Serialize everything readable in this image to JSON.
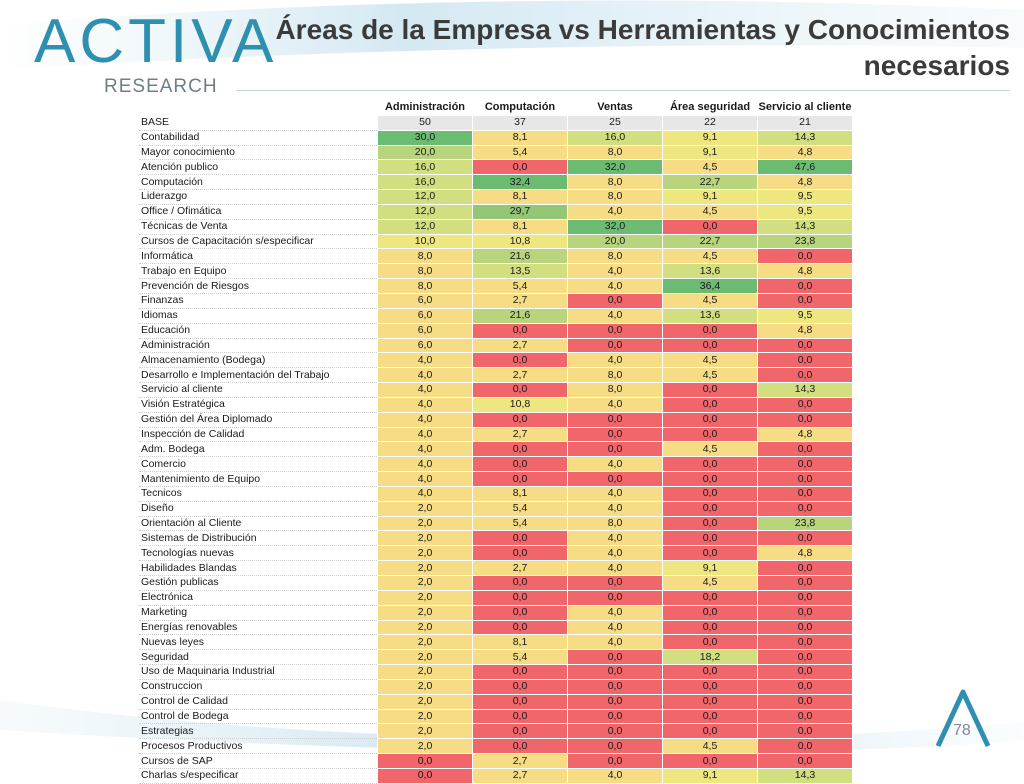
{
  "logo": {
    "mark": "ACTIVA",
    "sub": "RESEARCH"
  },
  "title": "Áreas de la Empresa vs Herramientas y Conocimientos necesarios",
  "page_number": "78",
  "colors": {
    "red": "#f0666a",
    "yellow": "#f6dc84",
    "green": "#6bbb72",
    "brand": "#2f8fb0"
  },
  "chart_data": {
    "type": "table",
    "title": "Áreas de la Empresa vs Herramientas y Conocimientos necesarios",
    "columns": [
      "Administración",
      "Computación",
      "Ventas",
      "Área seguridad",
      "Servicio al cliente"
    ],
    "base": {
      "label": "BASE",
      "values": [
        "50",
        "37",
        "25",
        "22",
        "21"
      ]
    },
    "rows": [
      {
        "label": "Contabilidad",
        "values": [
          "30,0",
          "8,1",
          "16,0",
          "9,1",
          "14,3"
        ]
      },
      {
        "label": "Mayor conocimiento",
        "values": [
          "20,0",
          "5,4",
          "8,0",
          "9,1",
          "4,8"
        ]
      },
      {
        "label": "Atención publico",
        "values": [
          "16,0",
          "0,0",
          "32,0",
          "4,5",
          "47,6"
        ]
      },
      {
        "label": "Computación",
        "values": [
          "16,0",
          "32,4",
          "8,0",
          "22,7",
          "4,8"
        ]
      },
      {
        "label": "Liderazgo",
        "values": [
          "12,0",
          "8,1",
          "8,0",
          "9,1",
          "9,5"
        ]
      },
      {
        "label": "Office / Ofimática",
        "values": [
          "12,0",
          "29,7",
          "4,0",
          "4,5",
          "9,5"
        ]
      },
      {
        "label": "Técnicas de Venta",
        "values": [
          "12,0",
          "8,1",
          "32,0",
          "0,0",
          "14,3"
        ]
      },
      {
        "label": "Cursos de Capacitación s/especificar",
        "values": [
          "10,0",
          "10,8",
          "20,0",
          "22,7",
          "23,8"
        ]
      },
      {
        "label": "Informática",
        "values": [
          "8,0",
          "21,6",
          "8,0",
          "4,5",
          "0,0"
        ]
      },
      {
        "label": "Trabajo en Equipo",
        "values": [
          "8,0",
          "13,5",
          "4,0",
          "13,6",
          "4,8"
        ]
      },
      {
        "label": "Prevención de Riesgos",
        "values": [
          "8,0",
          "5,4",
          "4,0",
          "36,4",
          "0,0"
        ]
      },
      {
        "label": "Finanzas",
        "values": [
          "6,0",
          "2,7",
          "0,0",
          "4,5",
          "0,0"
        ]
      },
      {
        "label": "Idiomas",
        "values": [
          "6,0",
          "21,6",
          "4,0",
          "13,6",
          "9,5"
        ]
      },
      {
        "label": "Educación",
        "values": [
          "6,0",
          "0,0",
          "0,0",
          "0,0",
          "4,8"
        ]
      },
      {
        "label": "Administración",
        "values": [
          "6,0",
          "2,7",
          "0,0",
          "0,0",
          "0,0"
        ]
      },
      {
        "label": "Almacenamiento (Bodega)",
        "values": [
          "4,0",
          "0,0",
          "4,0",
          "4,5",
          "0,0"
        ]
      },
      {
        "label": "Desarrollo e Implementación del Trabajo",
        "values": [
          "4,0",
          "2,7",
          "8,0",
          "4,5",
          "0,0"
        ]
      },
      {
        "label": "Servicio al cliente",
        "values": [
          "4,0",
          "0,0",
          "8,0",
          "0,0",
          "14,3"
        ]
      },
      {
        "label": "Visión Estratégica",
        "values": [
          "4,0",
          "10,8",
          "4,0",
          "0,0",
          "0,0"
        ]
      },
      {
        "label": "Gestión del Área Diplomado",
        "values": [
          "4,0",
          "0,0",
          "0,0",
          "0,0",
          "0,0"
        ]
      },
      {
        "label": "Inspección de Calidad",
        "values": [
          "4,0",
          "2,7",
          "0,0",
          "0,0",
          "4,8"
        ]
      },
      {
        "label": "Adm. Bodega",
        "values": [
          "4,0",
          "0,0",
          "0,0",
          "4,5",
          "0,0"
        ]
      },
      {
        "label": "Comercio",
        "values": [
          "4,0",
          "0,0",
          "4,0",
          "0,0",
          "0,0"
        ]
      },
      {
        "label": "Mantenimiento de Equipo",
        "values": [
          "4,0",
          "0,0",
          "0,0",
          "0,0",
          "0,0"
        ]
      },
      {
        "label": "Tecnicos",
        "values": [
          "4,0",
          "8,1",
          "4,0",
          "0,0",
          "0,0"
        ]
      },
      {
        "label": "Diseño",
        "values": [
          "2,0",
          "5,4",
          "4,0",
          "0,0",
          "0,0"
        ]
      },
      {
        "label": "Orientación al Cliente",
        "values": [
          "2,0",
          "5,4",
          "8,0",
          "0,0",
          "23,8"
        ]
      },
      {
        "label": "Sistemas de Distribución",
        "values": [
          "2,0",
          "0,0",
          "4,0",
          "0,0",
          "0,0"
        ]
      },
      {
        "label": "Tecnologías nuevas",
        "values": [
          "2,0",
          "0,0",
          "4,0",
          "0,0",
          "4,8"
        ]
      },
      {
        "label": "Habilidades Blandas",
        "values": [
          "2,0",
          "2,7",
          "4,0",
          "9,1",
          "0,0"
        ]
      },
      {
        "label": "Gestión publicas",
        "values": [
          "2,0",
          "0,0",
          "0,0",
          "4,5",
          "0,0"
        ]
      },
      {
        "label": "Electrónica",
        "values": [
          "2,0",
          "0,0",
          "0,0",
          "0,0",
          "0,0"
        ]
      },
      {
        "label": "Marketing",
        "values": [
          "2,0",
          "0,0",
          "4,0",
          "0,0",
          "0,0"
        ]
      },
      {
        "label": "Energías renovables",
        "values": [
          "2,0",
          "0,0",
          "4,0",
          "0,0",
          "0,0"
        ]
      },
      {
        "label": "Nuevas leyes",
        "values": [
          "2,0",
          "8,1",
          "4,0",
          "0,0",
          "0,0"
        ]
      },
      {
        "label": "Seguridad",
        "values": [
          "2,0",
          "5,4",
          "0,0",
          "18,2",
          "0,0"
        ]
      },
      {
        "label": "Uso de Maquinaria Industrial",
        "values": [
          "2,0",
          "0,0",
          "0,0",
          "0,0",
          "0,0"
        ]
      },
      {
        "label": "Construccion",
        "values": [
          "2,0",
          "0,0",
          "0,0",
          "0,0",
          "0,0"
        ]
      },
      {
        "label": "Control de Calidad",
        "values": [
          "2,0",
          "0,0",
          "0,0",
          "0,0",
          "0,0"
        ]
      },
      {
        "label": "Control de Bodega",
        "values": [
          "2,0",
          "0,0",
          "0,0",
          "0,0",
          "0,0"
        ]
      },
      {
        "label": "Estrategias",
        "values": [
          "2,0",
          "0,0",
          "0,0",
          "0,0",
          "0,0"
        ]
      },
      {
        "label": "Procesos Productivos",
        "values": [
          "2,0",
          "0,0",
          "0,0",
          "4,5",
          "0,0"
        ]
      },
      {
        "label": "Cursos de SAP",
        "values": [
          "0,0",
          "2,7",
          "0,0",
          "0,0",
          "0,0"
        ]
      },
      {
        "label": "Charlas s/especificar",
        "values": [
          "0,0",
          "2,7",
          "4,0",
          "9,1",
          "14,3"
        ]
      }
    ]
  }
}
